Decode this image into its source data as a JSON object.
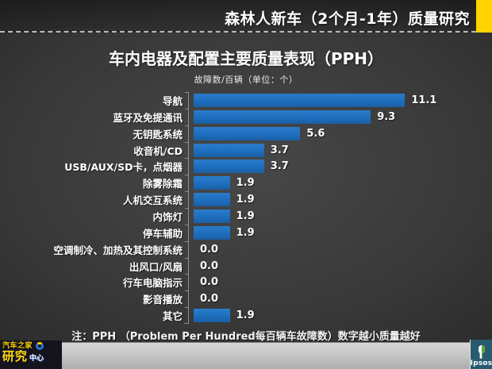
{
  "header": {
    "title": "森林人新车（2个月-1年）质量研究"
  },
  "chart": {
    "title": "车内电器及配置主要质量表现（PPH）",
    "subtitle": "故障数/百辆（单位：个）",
    "note": "注：PPH （Problem Per Hundred每百辆车故障数）数字越小质量越好"
  },
  "chart_data": {
    "type": "bar",
    "orientation": "horizontal",
    "title": "车内电器及配置主要质量表现（PPH）",
    "xlabel": "故障数/百辆（单位：个）",
    "ylabel": "",
    "xlim": [
      0,
      12.5
    ],
    "grid": false,
    "legend": null,
    "bar_color": "#1e6ebe",
    "categories": [
      "导航",
      "蓝牙及免提通讯",
      "无钥匙系统",
      "收音机/CD",
      "USB/AUX/SD卡，点烟器",
      "除雾除霜",
      "人机交互系统",
      "内饰灯",
      "停车辅助",
      "空调制冷、加热及其控制系统",
      "出风口/风扇",
      "行车电脑指示",
      "影音播放",
      "其它"
    ],
    "values": [
      11.1,
      9.3,
      5.6,
      3.7,
      3.7,
      1.9,
      1.9,
      1.9,
      1.9,
      0.0,
      0.0,
      0.0,
      0.0,
      1.9
    ],
    "value_labels": [
      "11.1",
      "9.3",
      "5.6",
      "3.7",
      "3.7",
      "1.9",
      "1.9",
      "1.9",
      "1.9",
      "0.0",
      "0.0",
      "0.0",
      "0.0",
      "1.9"
    ]
  },
  "footer": {
    "logo_left": {
      "line1": "汽车之家",
      "line2": "研究",
      "line3": "中心"
    },
    "logo_right": {
      "label": "Ipsos"
    }
  },
  "colors": {
    "accent_yellow": "#ffd400",
    "bar_blue": "#1e6ebe",
    "strip_gray": "#c2c2c2",
    "ipsos_teal": "#275b70"
  }
}
